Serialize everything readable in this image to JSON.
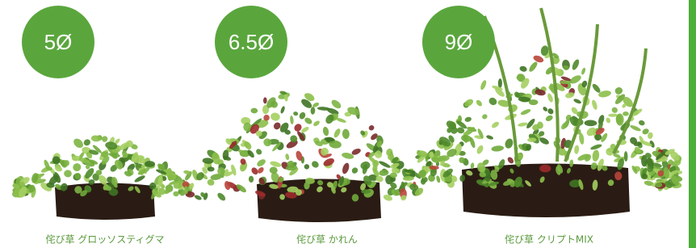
{
  "items": [
    {
      "badge": "5Ø",
      "caption": "侘び草 グロッソスティグマ"
    },
    {
      "badge": "6.5Ø",
      "caption": "侘び草 かれん"
    },
    {
      "badge": "9Ø",
      "caption": "侘び草 クリプトMIX"
    }
  ]
}
